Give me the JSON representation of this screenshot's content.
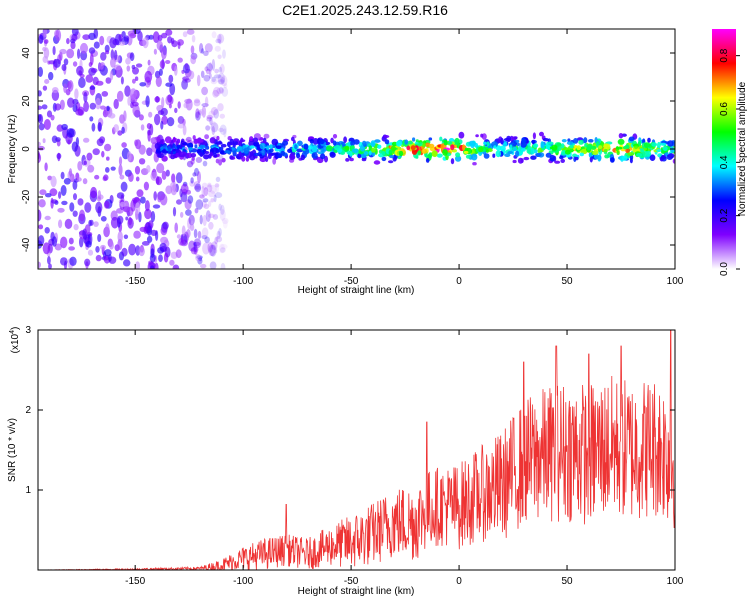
{
  "page_title": "C2E1.2025.243.12.59.R16",
  "colors": {
    "snr_line": "#ee3333",
    "background": "#ffffff",
    "frame": "#000000"
  },
  "chart_data": [
    {
      "type": "heatmap",
      "title": "C2E1.2025.243.12.59.R16",
      "xlabel": "Height of straight line (km)",
      "ylabel": "Frequency (Hz)",
      "xlim": [
        -195,
        100
      ],
      "ylim": [
        -50,
        50
      ],
      "x_ticks": [
        -150,
        -100,
        -50,
        0,
        50,
        100
      ],
      "x_tick_labels": [
        "-150",
        "-100",
        "-50",
        "0",
        "50",
        "100"
      ],
      "y_ticks": [
        -40,
        -20,
        0,
        20,
        40
      ],
      "y_tick_labels": [
        "-40",
        "-20",
        "0",
        "20",
        "40"
      ],
      "colorbar": {
        "label": "Normalized spectral amplitude",
        "range": [
          0,
          0.9
        ],
        "ticks": [
          0,
          0.2,
          0.4,
          0.6,
          0.8
        ],
        "tick_labels": [
          "0.0",
          "0.2",
          "0.4",
          "0.6",
          "0.8"
        ],
        "colormap": [
          "#ffffff",
          "#7f00ff",
          "#0000ff",
          "#00ffff",
          "#00ff00",
          "#ffff00",
          "#ff0000",
          "#ff00ff"
        ]
      },
      "noise_region": {
        "x_range": [
          -195,
          -120
        ],
        "freq_range": [
          -50,
          50
        ],
        "amplitude": 0.15
      },
      "signal_band": {
        "x_range": [
          -140,
          100
        ],
        "center_freq_hz": 0,
        "half_width_hz": 5,
        "points": [
          {
            "x": -140,
            "amp": 0.3
          },
          {
            "x": -110,
            "amp": 0.35
          },
          {
            "x": -80,
            "amp": 0.4
          },
          {
            "x": -60,
            "amp": 0.45
          },
          {
            "x": -50,
            "amp": 0.5
          },
          {
            "x": -40,
            "amp": 0.55
          },
          {
            "x": -30,
            "amp": 0.7
          },
          {
            "x": -20,
            "amp": 0.8
          },
          {
            "x": -10,
            "amp": 0.9
          },
          {
            "x": 0,
            "amp": 0.8
          },
          {
            "x": 10,
            "amp": 0.55
          },
          {
            "x": 20,
            "amp": 0.5
          },
          {
            "x": 40,
            "amp": 0.55
          },
          {
            "x": 60,
            "amp": 0.65
          },
          {
            "x": 75,
            "amp": 0.75
          },
          {
            "x": 90,
            "amp": 0.6
          },
          {
            "x": 100,
            "amp": 0.5
          }
        ]
      }
    },
    {
      "type": "line",
      "xlabel": "Height of straight line (km)",
      "ylabel": "SNR (10 * v/v)",
      "y_multiplier": "(x10",
      "y_multiplier_exp": "4",
      "y_multiplier_close": ")",
      "xlim": [
        -195,
        100
      ],
      "ylim": [
        0,
        3
      ],
      "x_ticks": [
        -150,
        -100,
        -50,
        0,
        50,
        100
      ],
      "x_tick_labels": [
        "-150",
        "-100",
        "-50",
        "0",
        "50",
        "100"
      ],
      "y_ticks": [
        1,
        2,
        3
      ],
      "y_tick_labels": [
        "1",
        "2",
        "3"
      ],
      "series": [
        {
          "name": "SNR",
          "color": "#ee3333",
          "envelope": {
            "x": [
              -195,
              -150,
              -120,
              -110,
              -100,
              -90,
              -80,
              -70,
              -60,
              -50,
              -40,
              -30,
              -20,
              -15,
              -10,
              0,
              10,
              20,
              30,
              40,
              50,
              60,
              70,
              80,
              90,
              95,
              100
            ],
            "mean": [
              0.0,
              0.01,
              0.02,
              0.06,
              0.15,
              0.2,
              0.25,
              0.2,
              0.3,
              0.35,
              0.45,
              0.6,
              0.6,
              0.75,
              0.8,
              0.8,
              0.95,
              1.05,
              1.35,
              1.45,
              1.5,
              1.45,
              1.55,
              1.5,
              1.55,
              1.5,
              1.3
            ],
            "spread": [
              0.0,
              0.01,
              0.02,
              0.08,
              0.15,
              0.2,
              0.2,
              0.2,
              0.25,
              0.35,
              0.4,
              0.45,
              0.5,
              0.5,
              0.5,
              0.55,
              0.6,
              0.7,
              0.8,
              0.85,
              0.9,
              0.9,
              0.9,
              0.9,
              0.9,
              0.9,
              0.8
            ]
          },
          "peaks": [
            {
              "x": -80,
              "y": 0.82
            },
            {
              "x": -15,
              "y": 1.85
            },
            {
              "x": 30,
              "y": 2.6
            },
            {
              "x": 45,
              "y": 2.8
            },
            {
              "x": 60,
              "y": 2.7
            },
            {
              "x": 75,
              "y": 2.8
            },
            {
              "x": 98,
              "y": 3.0
            }
          ]
        }
      ]
    }
  ]
}
